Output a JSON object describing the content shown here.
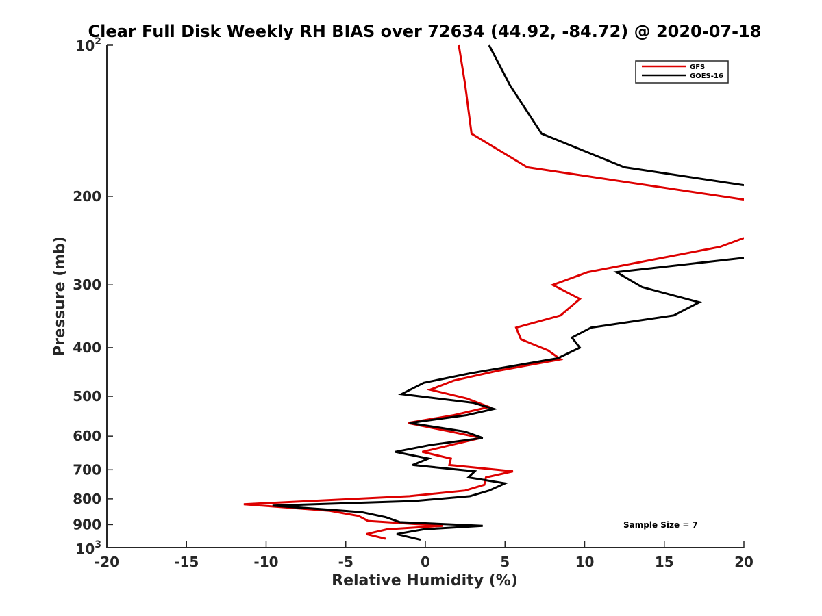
{
  "chart_data": {
    "type": "line",
    "title": "Clear Full Disk Weekly RH BIAS over 72634 (44.92, -84.72) @ 2020-07-18",
    "xlabel": "Relative Humidity (%)",
    "ylabel": "Pressure (mb)",
    "xlim": [
      -20,
      20
    ],
    "ylim": [
      100,
      1000
    ],
    "yscale": "log",
    "y_reversed": true,
    "x_ticks": [
      -20,
      -15,
      -10,
      -5,
      0,
      5,
      10,
      15,
      20
    ],
    "x_tick_labels": [
      "-20",
      "-15",
      "-10",
      "-5",
      "0",
      "5",
      "10",
      "15",
      "20"
    ],
    "y_ticks": [
      200,
      300,
      400,
      500,
      600,
      700,
      800,
      900
    ],
    "y_tick_labels": [
      "200",
      "300",
      "400",
      "500",
      "600",
      "700",
      "800",
      "900"
    ],
    "y_end_labels": {
      "top_base": "10",
      "top_exp": "2",
      "bottom_base": "10",
      "bottom_exp": "3"
    },
    "grid": false,
    "legend_position": "top-right",
    "annotation": "Sample Size = 7",
    "series": [
      {
        "name": "GFS",
        "color": "#dd0000",
        "segments": [
          {
            "x": [
              2.1,
              2.5,
              2.9,
              6.4,
              20
            ],
            "y": [
              100,
              120,
              150,
              175,
              203
            ]
          },
          {
            "x": [
              20,
              18.5,
              10.2,
              8.0,
              9.7,
              8.5,
              5.7,
              6.0,
              7.7,
              8.5,
              4.5,
              1.8,
              0.3,
              2.6,
              4.0,
              1.8,
              -1.1,
              1.5,
              3.5,
              1.6,
              -0.2,
              1.6,
              1.5,
              5.5,
              3.8,
              3.7,
              2.5,
              -1.0,
              -11.4,
              -6.0,
              -4.2,
              -3.6,
              1.1,
              -2.4,
              -3.7,
              -2.5
            ],
            "y": [
              242,
              252,
              283,
              300,
              320,
              345,
              365,
              385,
              405,
              422,
              445,
              465,
              485,
              505,
              525,
              545,
              565,
              587,
              605,
              625,
              645,
              665,
              685,
              705,
              725,
              750,
              770,
              790,
              820,
              845,
              865,
              885,
              905,
              920,
              940,
              960
            ]
          }
        ]
      },
      {
        "name": "GOES-16",
        "color": "#000000",
        "segments": [
          {
            "x": [
              4.0,
              5.3,
              7.3,
              12.5,
              20
            ],
            "y": [
              100,
              120,
              150,
              175,
              190
            ]
          },
          {
            "x": [
              20,
              12.0,
              13.6,
              17.2,
              15.6,
              10.4,
              9.2,
              9.7,
              8.3,
              2.8,
              -0.1,
              -1.5,
              3.0,
              4.3,
              2.6,
              -1.0,
              2.5,
              3.6,
              0.3,
              -1.9,
              0.2,
              -0.8,
              3.1,
              2.7,
              5.0,
              4.0,
              2.8,
              -0.7,
              -9.6,
              -4.0,
              -2.5,
              -1.6,
              3.6,
              -0.1,
              -1.8,
              -0.3
            ],
            "y": [
              265,
              283,
              303,
              325,
              345,
              365,
              382,
              400,
              420,
              450,
              470,
              495,
              515,
              530,
              545,
              565,
              588,
              605,
              625,
              645,
              665,
              685,
              705,
              725,
              745,
              770,
              790,
              808,
              825,
              850,
              870,
              890,
              905,
              920,
              940,
              965
            ]
          }
        ]
      }
    ]
  }
}
